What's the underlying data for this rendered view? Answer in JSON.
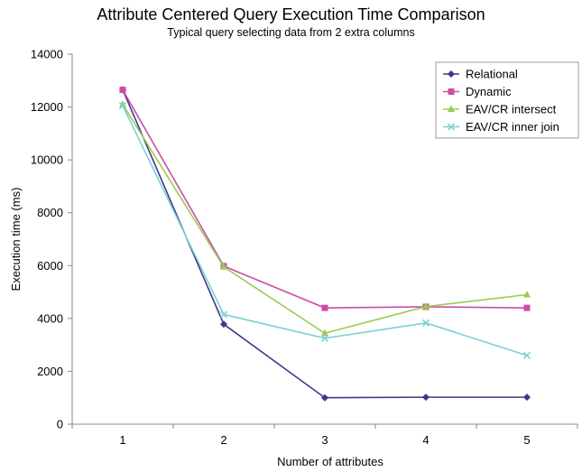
{
  "chart_data": {
    "type": "line",
    "title": "Attribute Centered Query Execution Time Comparison",
    "subtitle": "Typical query selecting data from 2 extra columns",
    "xlabel": "Number of attributes",
    "ylabel": "Execution time (ms)",
    "categories": [
      "1",
      "2",
      "3",
      "4",
      "5"
    ],
    "ylim": [
      0,
      14000
    ],
    "yticks": [
      0,
      2000,
      4000,
      6000,
      8000,
      10000,
      12000,
      14000
    ],
    "legend_position": "top-right",
    "grid": false,
    "series": [
      {
        "name": "Relational",
        "color": "#3a3a8c",
        "marker": "diamond",
        "values": [
          12650,
          3780,
          1000,
          1020,
          1020
        ]
      },
      {
        "name": "Dynamic",
        "color": "#cc4ca6",
        "marker": "square",
        "values": [
          12650,
          5980,
          4400,
          4440,
          4400
        ]
      },
      {
        "name": "EAV/CR intersect",
        "color": "#9acc4e",
        "marker": "triangle",
        "values": [
          12100,
          5950,
          3440,
          4450,
          4900
        ]
      },
      {
        "name": "EAV/CR inner join",
        "color": "#7fcfd1",
        "marker": "x",
        "values": [
          12050,
          4150,
          3250,
          3830,
          2600
        ]
      }
    ]
  }
}
